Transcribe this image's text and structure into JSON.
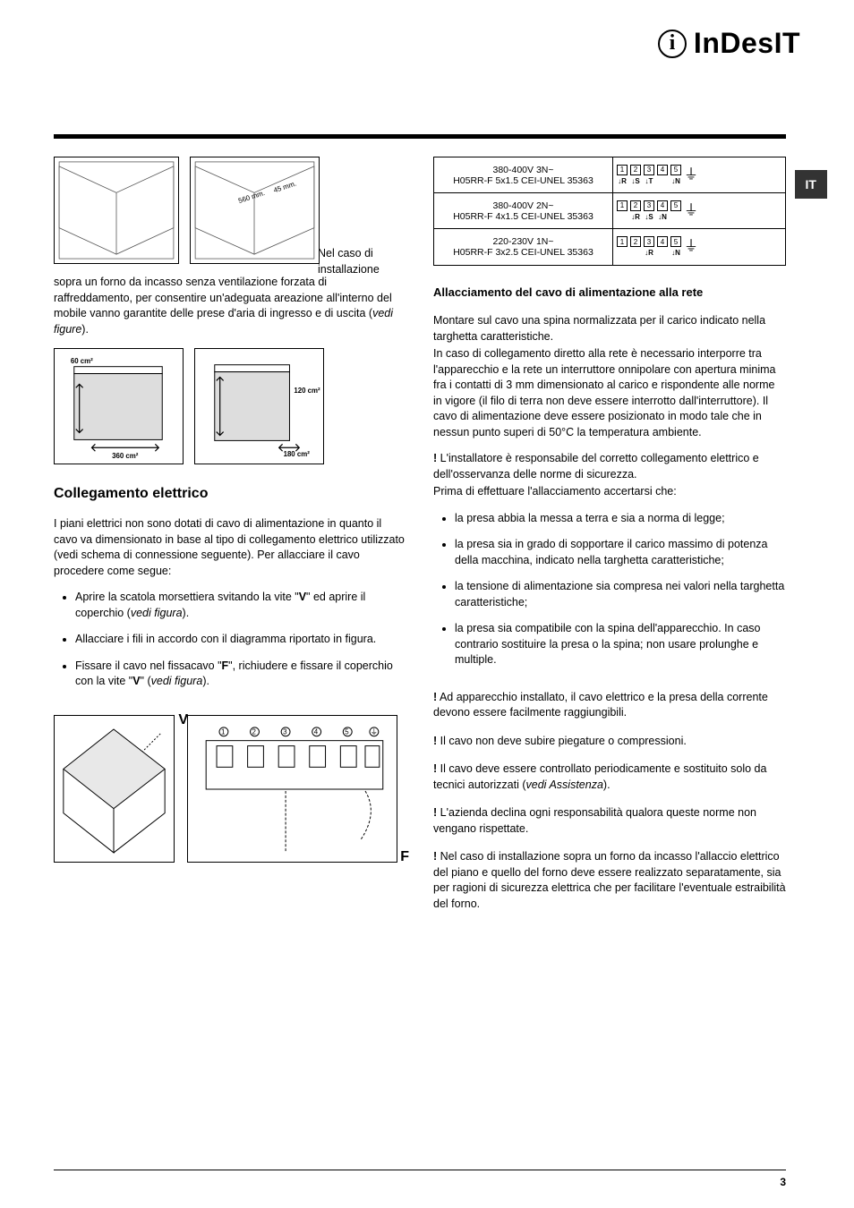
{
  "brand": {
    "icon_glyph": "i",
    "name": "InDesIT"
  },
  "lang_badge": "IT",
  "page_number": "3",
  "left_col": {
    "fig_inline_text": "Nel caso di installazione",
    "intro_paragraph": "sopra un forno da incasso senza ventilazione forzata di raffreddamento, per consentire un'adeguata areazione all'interno del mobile vanno garantite delle prese d'aria di ingresso e di uscita (",
    "intro_paragraph_italic": "vedi figure",
    "intro_paragraph_end": ").",
    "fig1_labels": {
      "dim1": "560 mm.",
      "dim2": "45 mm."
    },
    "fig3_labels": {
      "top": "60 cm²",
      "bottom": "360 cm²"
    },
    "fig4_labels": {
      "top": "120 cm²",
      "bottom": "180 cm²"
    },
    "heading": "Collegamento elettrico",
    "para2": "I piani elettrici non sono dotati di cavo di alimentazione in quanto il cavo va dimensionato in base al tipo di collegamento elettrico utilizzato (vedi schema di connessione seguente). Per allacciare il cavo procedere come segue:",
    "bullets": [
      {
        "pre": "Aprire la scatola morsettiera svitando la vite \"",
        "bold1": "V",
        "mid": "\" ed aprire il coperchio (",
        "italic": "vedi figura",
        "post": ")."
      },
      {
        "pre": "Allacciare i fili in accordo con il diagramma riportato in figura.",
        "bold1": "",
        "mid": "",
        "italic": "",
        "post": ""
      },
      {
        "pre": "Fissare il cavo nel fissacavo \"",
        "bold1": "F",
        "mid": "\", richiudere e fissare il coperchio con la vite \"",
        "bold2": "V",
        "mid2": "\" (",
        "italic": "vedi figura",
        "post": ")."
      }
    ],
    "v_label": "V",
    "f_label": "F"
  },
  "right_col": {
    "wiring_rows": [
      {
        "voltage": "380-400V 3N~",
        "cable": "H05RR-F 5x1.5 CEI-UNEL 35363",
        "terminals": [
          {
            "num": "1",
            "label": "R"
          },
          {
            "num": "2",
            "label": "S"
          },
          {
            "num": "3",
            "label": "T"
          },
          {
            "num": "4",
            "label": ""
          },
          {
            "num": "5",
            "label": "N"
          }
        ]
      },
      {
        "voltage": "380-400V 2N~",
        "cable": "H05RR-F 4x1.5 CEI-UNEL 35363",
        "terminals": [
          {
            "num": "1",
            "label": ""
          },
          {
            "num": "2",
            "label": "R"
          },
          {
            "num": "3",
            "label": "S"
          },
          {
            "num": "4",
            "label": "N"
          },
          {
            "num": "5",
            "label": ""
          }
        ]
      },
      {
        "voltage": "220-230V 1N~",
        "cable": "H05RR-F 3x2.5 CEI-UNEL 35363",
        "terminals": [
          {
            "num": "1",
            "label": ""
          },
          {
            "num": "2",
            "label": ""
          },
          {
            "num": "3",
            "label": "R"
          },
          {
            "num": "4",
            "label": ""
          },
          {
            "num": "5",
            "label": "N"
          }
        ]
      }
    ],
    "sub_heading": "Allacciamento del cavo di alimentazione alla rete",
    "para1": "Montare sul cavo una spina normalizzata per il carico indicato nella targhetta caratteristiche.",
    "para2": "In caso di collegamento diretto alla rete è necessario interporre tra l'apparecchio e la rete un interruttore onnipolare con apertura minima fra i contatti di 3 mm dimensionato al carico e rispondente alle norme in vigore (il filo di terra non deve essere interrotto dall'interruttore). Il cavo di alimentazione deve essere posizionato in modo tale che in nessun punto superi di 50°C la temperatura ambiente.",
    "warn1_pre": "! ",
    "warn1": "L'installatore è responsabile del corretto collegamento elettrico e dell'osservanza delle norme di sicurezza.",
    "check_intro": "Prima di effettuare l'allacciamento accertarsi che:",
    "check_bullets": [
      "la presa abbia la messa a terra e sia a norma di legge;",
      "la presa sia in grado di sopportare il carico massimo di potenza della macchina, indicato nella targhetta caratteristiche;",
      "la tensione di alimentazione sia compresa nei valori nella targhetta caratteristiche;",
      "la presa sia compatibile con la spina dell'apparecchio. In caso contrario sostituire la presa o la spina; non usare prolunghe e multiple."
    ],
    "warn2": "Ad apparecchio installato, il cavo elettrico e la presa della corrente devono essere facilmente raggiungibili.",
    "warn3": "Il cavo non deve subire piegature o compressioni.",
    "warn4_pre": "Il cavo deve essere controllato periodicamente e sostituito solo da tecnici autorizzati (",
    "warn4_italic": "vedi Assistenza",
    "warn4_post": ").",
    "warn5": "L'azienda declina ogni responsabilità qualora queste norme non vengano rispettate.",
    "warn6": "Nel caso di installazione sopra un forno da incasso l'allaccio elettrico del piano e quello del forno deve essere realizzato separatamente, sia per ragioni di sicurezza elettrica che per facilitare l'eventuale estraibilità del forno."
  }
}
